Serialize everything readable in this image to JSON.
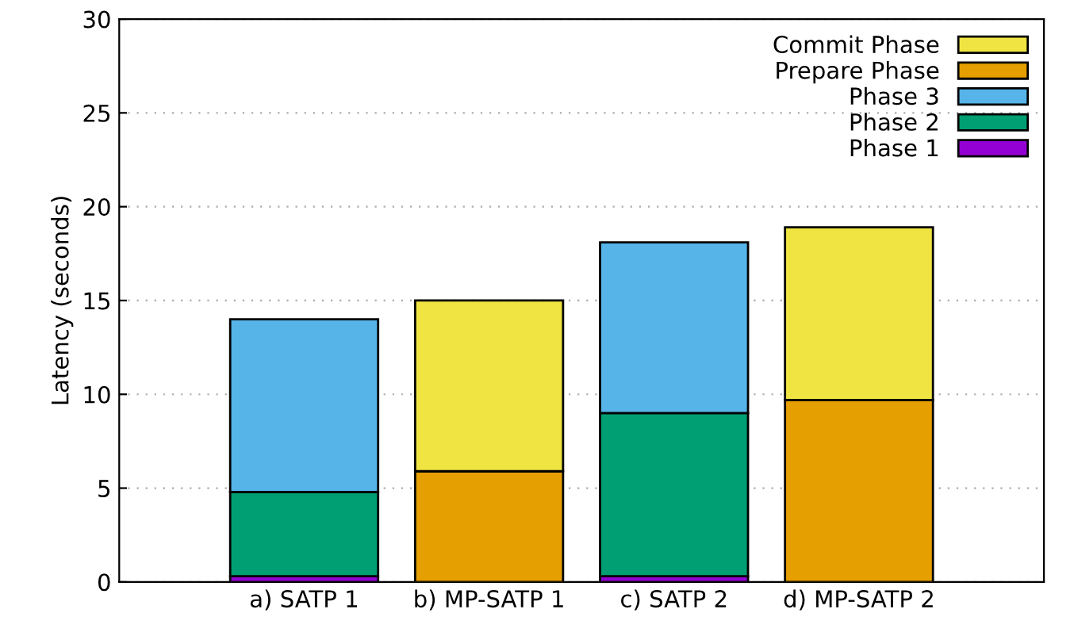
{
  "chart_data": {
    "type": "bar",
    "ylabel": "Latency (seconds)",
    "stacked": true,
    "categories": [
      "a) SATP 1",
      "b) MP-SATP 1",
      "c) SATP 2",
      "d) MP-SATP 2"
    ],
    "series": [
      {
        "name": "Phase 1",
        "color": "#9400d3",
        "values": [
          0.3,
          null,
          0.3,
          null
        ]
      },
      {
        "name": "Phase 2",
        "color": "#009e73",
        "values": [
          4.5,
          null,
          8.7,
          null
        ]
      },
      {
        "name": "Phase 3",
        "color": "#56b4e9",
        "values": [
          9.2,
          null,
          9.1,
          null
        ]
      },
      {
        "name": "Prepare Phase",
        "color": "#e69f00",
        "values": [
          null,
          5.9,
          null,
          9.7
        ]
      },
      {
        "name": "Commit Phase",
        "color": "#f0e442",
        "values": [
          null,
          9.1,
          null,
          9.2
        ]
      }
    ],
    "ylim": [
      0,
      30
    ],
    "yticks": [
      0,
      5,
      10,
      15,
      20,
      25,
      30
    ],
    "grid": "y",
    "legend": "top right"
  }
}
